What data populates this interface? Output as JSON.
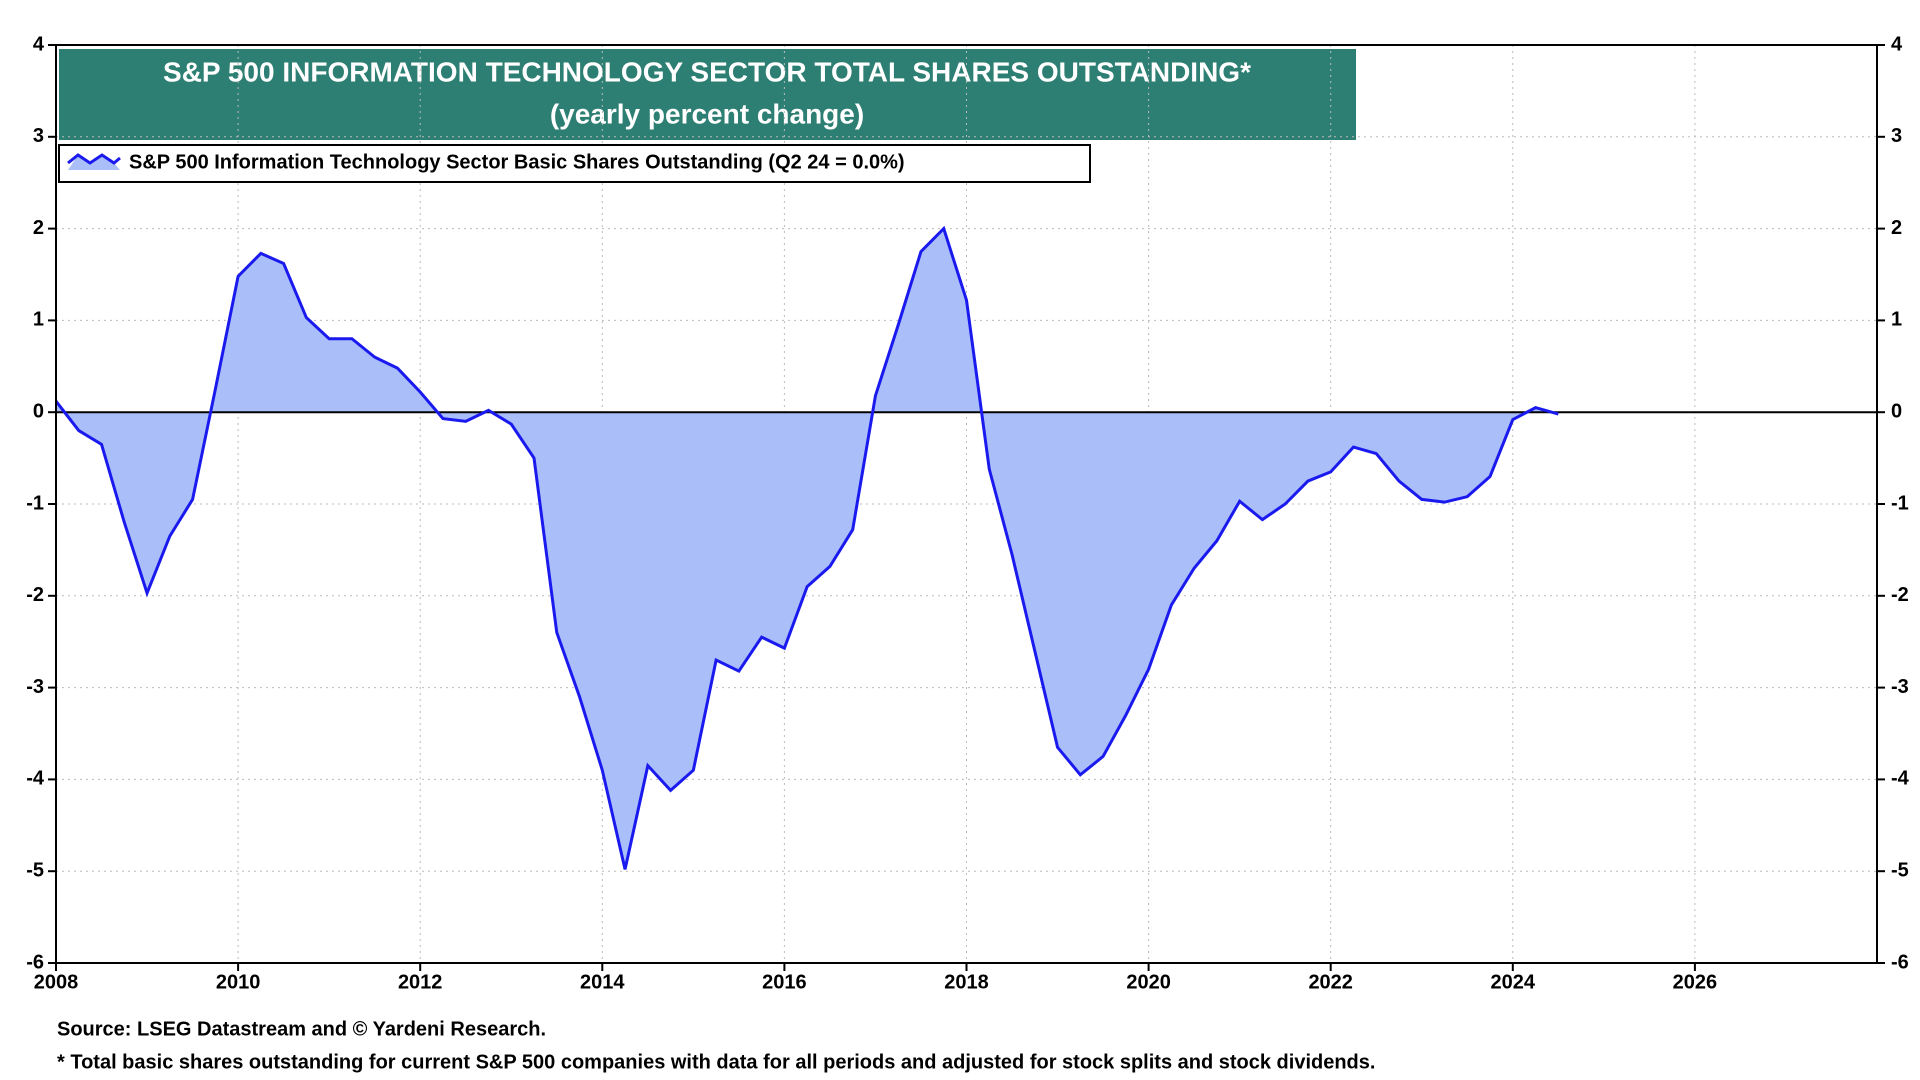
{
  "chart_data": {
    "type": "area",
    "title": "S&P 500 INFORMATION TECHNOLOGY SECTOR TOTAL SHARES OUTSTANDING*",
    "subtitle": "(yearly percent change)",
    "source": "Source: LSEG Datastream and © Yardeni Research.",
    "footnote": "* Total basic shares outstanding for current S&P 500 companies with data for all periods and adjusted for stock splits and stock dividends.",
    "x": [
      2008.0,
      2008.25,
      2008.5,
      2008.75,
      2009.0,
      2009.25,
      2009.5,
      2009.75,
      2010.0,
      2010.25,
      2010.5,
      2010.75,
      2011.0,
      2011.25,
      2011.5,
      2011.75,
      2012.0,
      2012.25,
      2012.5,
      2012.75,
      2013.0,
      2013.25,
      2013.5,
      2013.75,
      2014.0,
      2014.25,
      2014.5,
      2014.75,
      2015.0,
      2015.25,
      2015.5,
      2015.75,
      2016.0,
      2016.25,
      2016.5,
      2016.75,
      2017.0,
      2017.25,
      2017.5,
      2017.75,
      2018.0,
      2018.25,
      2018.5,
      2018.75,
      2019.0,
      2019.25,
      2019.5,
      2019.75,
      2020.0,
      2020.25,
      2020.5,
      2020.75,
      2021.0,
      2021.25,
      2021.5,
      2021.75,
      2022.0,
      2022.25,
      2022.5,
      2022.75,
      2023.0,
      2023.25,
      2023.5,
      2023.75,
      2024.0,
      2024.25,
      2024.5
    ],
    "series": [
      {
        "name": "S&P 500 Information Technology Sector Basic Shares Outstanding (Q2 24 = 0.0%)",
        "color": "#1a1aee",
        "fill": "#aabffa",
        "values": [
          0.12,
          -0.2,
          -0.35,
          -1.2,
          -1.97,
          -1.35,
          -0.95,
          0.25,
          1.48,
          1.73,
          1.62,
          1.03,
          0.8,
          0.8,
          0.6,
          0.48,
          0.22,
          -0.07,
          -0.1,
          0.02,
          -0.13,
          -0.5,
          -2.4,
          -3.1,
          -3.9,
          -4.98,
          -3.85,
          -4.12,
          -3.9,
          -2.7,
          -2.82,
          -2.45,
          -2.57,
          -1.9,
          -1.68,
          -1.28,
          0.18,
          0.95,
          1.75,
          2.0,
          1.22,
          -0.62,
          -1.55,
          -2.6,
          -3.65,
          -3.95,
          -3.75,
          -3.3,
          -2.8,
          -2.1,
          -1.7,
          -1.4,
          -0.97,
          -1.17,
          -1.0,
          -0.75,
          -0.65,
          -0.38,
          -0.45,
          -0.75,
          -0.95,
          -0.98,
          -0.92,
          -0.7,
          -0.08,
          0.05,
          -0.02
        ]
      }
    ],
    "xlim": [
      2008,
      2028
    ],
    "xticks": [
      2008,
      2010,
      2012,
      2014,
      2016,
      2018,
      2020,
      2022,
      2024,
      2026
    ],
    "ylim": [
      -6,
      4
    ],
    "yticks": [
      -6,
      -5,
      -4,
      -3,
      -2,
      -1,
      0,
      1,
      2,
      3,
      4
    ],
    "grid": true
  }
}
